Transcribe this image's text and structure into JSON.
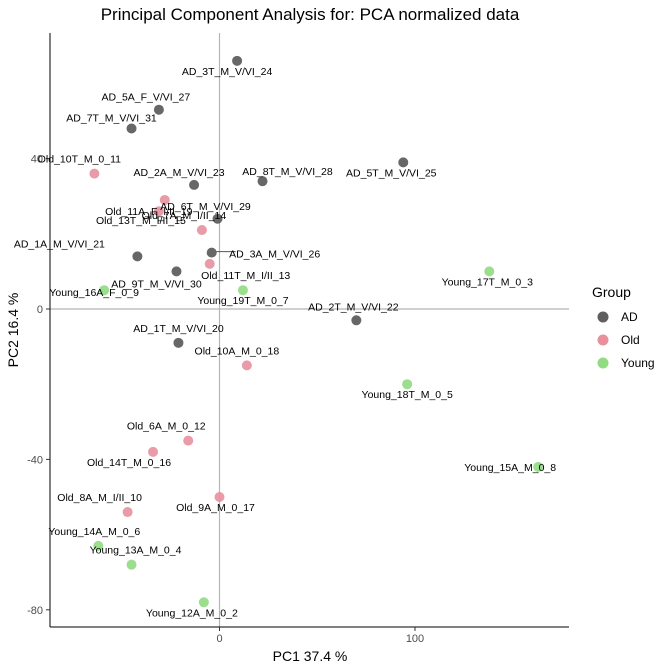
{
  "chart_data": {
    "type": "scatter",
    "title": "Principal Component Analysis for:  PCA normalized data",
    "xlabel": "PC1 37.4 %",
    "ylabel": "PC2 16.4 %",
    "xlim": [
      -90,
      165
    ],
    "ylim": [
      -85,
      73
    ],
    "xticks": [
      0,
      100
    ],
    "yticks": [
      40,
      0,
      -40,
      -80
    ],
    "reference_lines": {
      "x": 0,
      "y": 0
    },
    "grid": false,
    "legend": {
      "title": "Group",
      "position": "right",
      "entries": [
        {
          "name": "AD",
          "color": "#5f5f5f"
        },
        {
          "name": "Old",
          "color": "#e8909e"
        },
        {
          "name": "Young",
          "color": "#90dc82"
        }
      ]
    },
    "points": [
      {
        "label": "AD_3T_M_V/VI_24",
        "group": "AD",
        "x": 9,
        "y": 66
      },
      {
        "label": "AD_5A_F_V/VI_27",
        "group": "AD",
        "x": -31,
        "y": 53
      },
      {
        "label": "AD_7T_M_V/VI_31",
        "group": "AD",
        "x": -45,
        "y": 48
      },
      {
        "label": "AD_2A_M_V/VI_23",
        "group": "AD",
        "x": -13,
        "y": 33
      },
      {
        "label": "AD_8T_M_V/VI_28",
        "group": "AD",
        "x": 22,
        "y": 34
      },
      {
        "label": "AD_5T_M_V/VI_25",
        "group": "AD",
        "x": 94,
        "y": 39
      },
      {
        "label": "AD_6T_M_V/VI_29",
        "group": "AD",
        "x": -1,
        "y": 24
      },
      {
        "label": "AD_1A_M_V/VI_21",
        "group": "AD",
        "x": -42,
        "y": 14
      },
      {
        "label": "AD_3A_M_V/VI_26",
        "group": "AD",
        "x": -4,
        "y": 15
      },
      {
        "label": "AD_9T_M_V/VI_30",
        "group": "AD",
        "x": -22,
        "y": 10
      },
      {
        "label": "AD_2T_M_V/VI_22",
        "group": "AD",
        "x": 70,
        "y": -3
      },
      {
        "label": "AD_1T_M_V/VI_20",
        "group": "AD",
        "x": -21,
        "y": -9
      },
      {
        "label": "Old_10T_M_0_11",
        "group": "Old",
        "x": -64,
        "y": 36
      },
      {
        "label": "Old_11A_F_I/II_19",
        "group": "Old",
        "x": -28,
        "y": 29
      },
      {
        "label": "Old_13T_M_I/II_15",
        "group": "Old",
        "x": -31,
        "y": 26
      },
      {
        "label": "Old_7A_M_I/II_14",
        "group": "Old",
        "x": -9,
        "y": 21
      },
      {
        "label": "Old_11T_M_I/II_13",
        "group": "Old",
        "x": -5,
        "y": 12
      },
      {
        "label": "Old_10A_M_0_18",
        "group": "Old",
        "x": 14,
        "y": -15
      },
      {
        "label": "Old_6A_M_0_12",
        "group": "Old",
        "x": -16,
        "y": -35
      },
      {
        "label": "Old_14T_M_0_16",
        "group": "Old",
        "x": -34,
        "y": -38
      },
      {
        "label": "Old_9A_M_0_17",
        "group": "Old",
        "x": 0,
        "y": -50
      },
      {
        "label": "Old_8A_M_I/II_10",
        "group": "Old",
        "x": -47,
        "y": -54
      },
      {
        "label": "Young_16A_F_0_9",
        "group": "Young",
        "x": -59,
        "y": 5
      },
      {
        "label": "Young_19T_M_0_7",
        "group": "Young",
        "x": 12,
        "y": 5
      },
      {
        "label": "Young_17T_M_0_3",
        "group": "Young",
        "x": 138,
        "y": 10
      },
      {
        "label": "Young_18T_M_0_5",
        "group": "Young",
        "x": 96,
        "y": -20
      },
      {
        "label": "Young_15A_M_0_8",
        "group": "Young",
        "x": 163,
        "y": -42
      },
      {
        "label": "Young_14A_M_0_6",
        "group": "Young",
        "x": -62,
        "y": -63
      },
      {
        "label": "Young_13A_M_0_4",
        "group": "Young",
        "x": -45,
        "y": -68
      },
      {
        "label": "Young_12A_M_0_2",
        "group": "Young",
        "x": -8,
        "y": -78
      }
    ]
  }
}
